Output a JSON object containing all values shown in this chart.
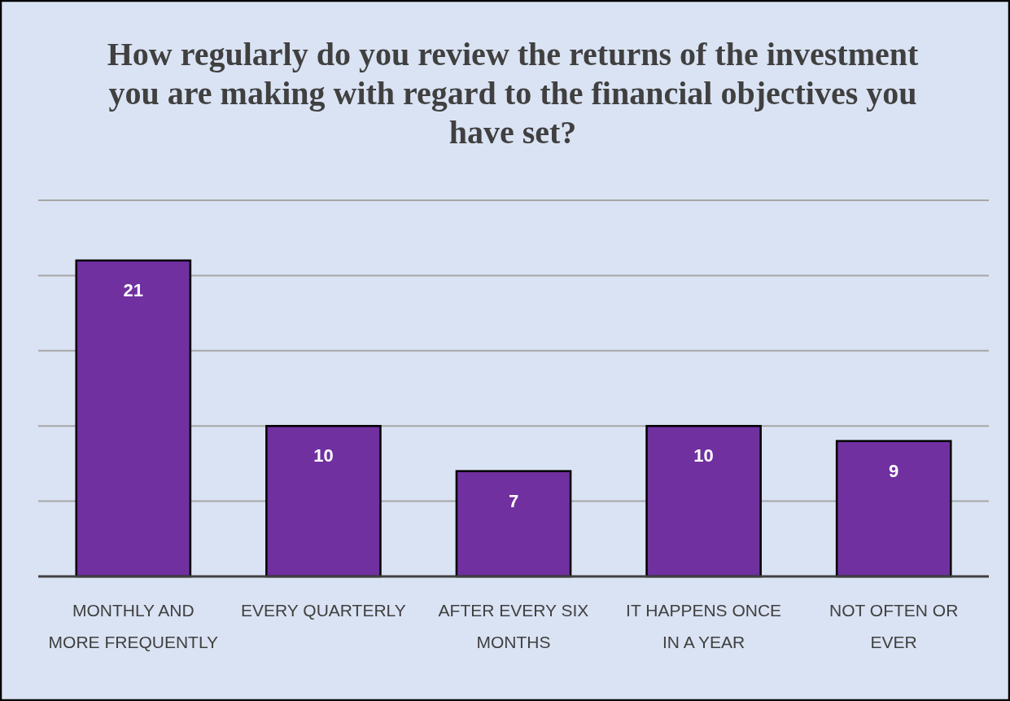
{
  "chart_data": {
    "type": "bar",
    "title": "How regularly do you review the returns of the investment you are making with regard to the financial objectives you have set?",
    "categories": [
      "MONTHLY AND MORE FREQUENTLY",
      "EVERY QUARTERLY",
      "AFTER EVERY SIX MONTHS",
      "IT HAPPENS ONCE IN A YEAR",
      "NOT OFTEN OR EVER"
    ],
    "values": [
      21,
      10,
      7,
      10,
      9
    ],
    "color": "#7030a0",
    "ylim": [
      0,
      25
    ],
    "yticks": [
      {
        "value": 0,
        "label": null
      },
      {
        "value": 5,
        "label": null
      },
      {
        "value": 10,
        "label": null
      },
      {
        "value": 15,
        "label": null
      },
      {
        "value": 20,
        "label": null
      },
      {
        "value": 25,
        "label": null
      }
    ],
    "grid": "y",
    "tick_labels": "x",
    "data_labels": true
  }
}
